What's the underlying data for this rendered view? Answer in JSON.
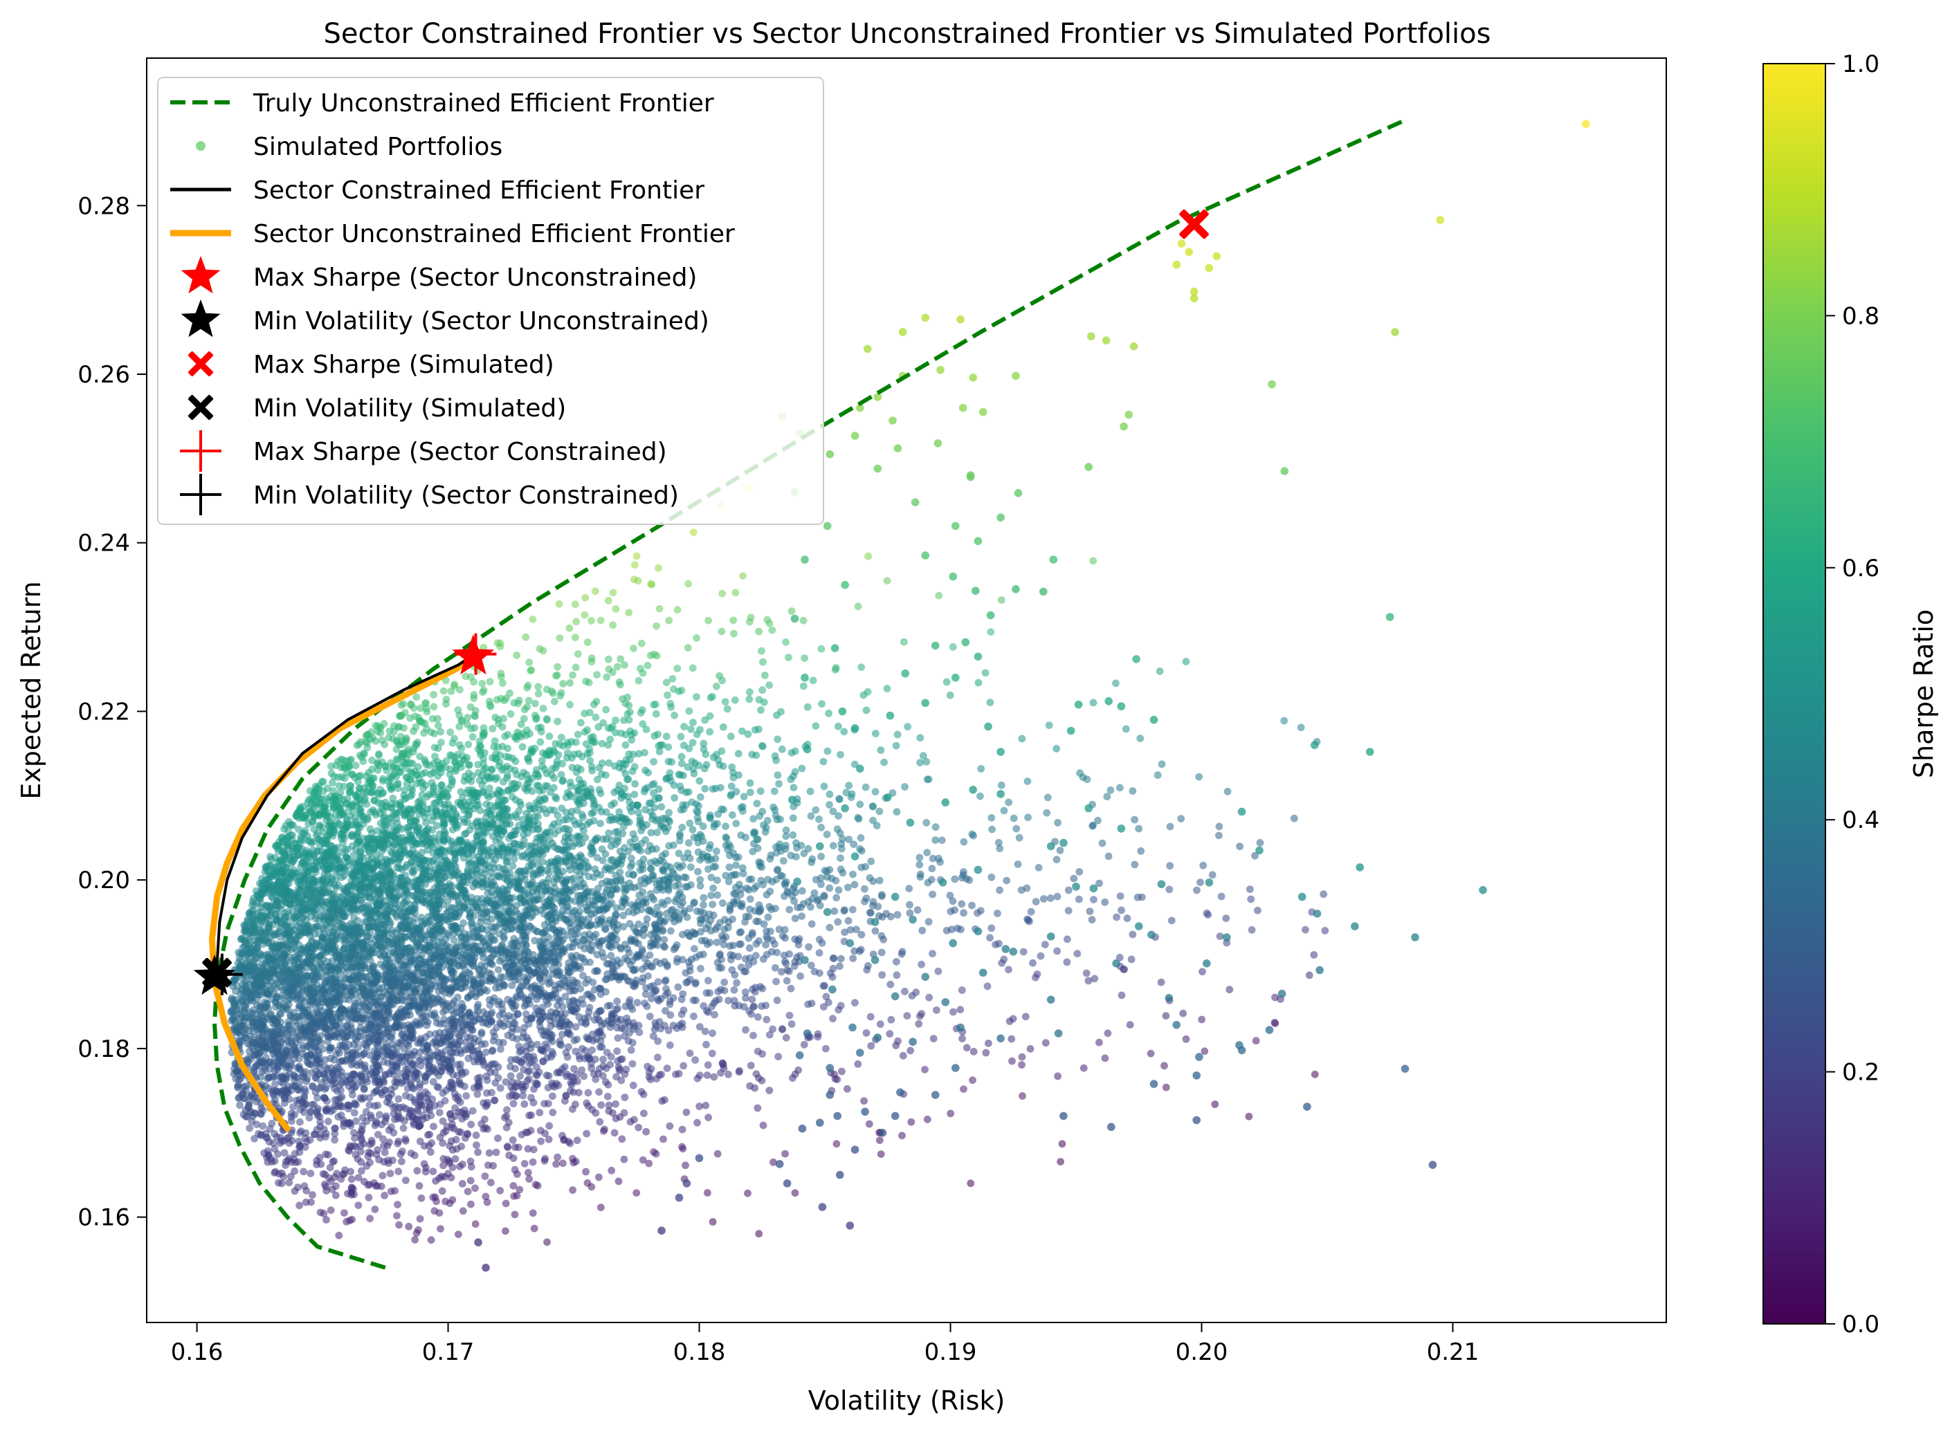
{
  "colors": {
    "true_frontier": "#008000",
    "sector_constrained": "#000000",
    "sector_unconstrained": "#ffa500",
    "max_marker": "#ff0000",
    "min_marker": "#000000"
  },
  "chart_data": {
    "type": "scatter",
    "title": "Sector Constrained Frontier vs Sector Unconstrained Frontier vs Simulated Portfolios",
    "xlabel": "Volatility (Risk)",
    "ylabel": "Expected Return",
    "xlim": [
      0.158,
      0.2185
    ],
    "ylim": [
      0.1475,
      0.2975
    ],
    "xticks": [
      0.16,
      0.17,
      0.18,
      0.19,
      0.2,
      0.21
    ],
    "xtick_labels": [
      "0.16",
      "0.17",
      "0.18",
      "0.19",
      "0.20",
      "0.21"
    ],
    "yticks": [
      0.16,
      0.18,
      0.2,
      0.22,
      0.24,
      0.26,
      0.28
    ],
    "ytick_labels": [
      "0.16",
      "0.18",
      "0.20",
      "0.22",
      "0.24",
      "0.26",
      "0.28"
    ],
    "grid": false,
    "legend_position": "top-left",
    "colorbar": {
      "label": "Sharpe Ratio",
      "range": [
        0.0,
        1.0
      ],
      "colormap": "viridis",
      "ticks": [
        0.0,
        0.2,
        0.4,
        0.6,
        0.8,
        1.0
      ],
      "tick_labels": [
        "0.0",
        "0.2",
        "0.4",
        "0.6",
        "0.8",
        "1.0"
      ]
    },
    "legend": [
      {
        "label": "Truly Unconstrained Efficient Frontier",
        "kind": "dashed-line",
        "color": "#008000"
      },
      {
        "label": "Simulated Portfolios",
        "kind": "dot",
        "color": "#5cc863"
      },
      {
        "label": "Sector Constrained Efficient Frontier",
        "kind": "line",
        "color": "#000000"
      },
      {
        "label": "Sector Unconstrained Efficient Frontier",
        "kind": "thick-line",
        "color": "#ffa500"
      },
      {
        "label": "Max Sharpe (Sector Unconstrained)",
        "kind": "star",
        "color": "#ff0000"
      },
      {
        "label": "Min Volatility (Sector Unconstrained)",
        "kind": "star",
        "color": "#000000"
      },
      {
        "label": "Max Sharpe (Simulated)",
        "kind": "x",
        "color": "#ff0000"
      },
      {
        "label": "Min Volatility (Simulated)",
        "kind": "x",
        "color": "#000000"
      },
      {
        "label": "Max Sharpe (Sector Constrained)",
        "kind": "plus",
        "color": "#ff0000"
      },
      {
        "label": "Min Volatility (Sector Constrained)",
        "kind": "plus",
        "color": "#000000"
      }
    ],
    "series": [
      {
        "name": "Truly Unconstrained Efficient Frontier",
        "style": "dashed",
        "x": [
          0.1675,
          0.1648,
          0.1636,
          0.1625,
          0.1617,
          0.1611,
          0.1608,
          0.1607,
          0.1608,
          0.1612,
          0.1619,
          0.1628,
          0.1642,
          0.1663,
          0.1694,
          0.1734,
          0.1784,
          0.1844,
          0.1912,
          0.199,
          0.208
        ],
        "y": [
          0.154,
          0.1565,
          0.16,
          0.164,
          0.1685,
          0.173,
          0.178,
          0.183,
          0.188,
          0.194,
          0.2,
          0.206,
          0.212,
          0.218,
          0.225,
          0.233,
          0.242,
          0.253,
          0.265,
          0.278,
          0.29
        ]
      },
      {
        "name": "Sector Constrained Efficient Frontier",
        "style": "solid",
        "x": [
          0.1608,
          0.1609,
          0.1612,
          0.1618,
          0.1628,
          0.1642,
          0.166,
          0.1682,
          0.1704,
          0.1712
        ],
        "y": [
          0.19,
          0.195,
          0.2,
          0.205,
          0.21,
          0.215,
          0.219,
          0.2225,
          0.2255,
          0.227
        ]
      },
      {
        "name": "Sector Unconstrained Efficient Frontier",
        "style": "thick",
        "x": [
          0.1636,
          0.1628,
          0.1618,
          0.1611,
          0.1607,
          0.1606,
          0.1608,
          0.1612,
          0.1618,
          0.1627,
          0.164,
          0.1657,
          0.168,
          0.1703,
          0.1712
        ],
        "y": [
          0.1705,
          0.1735,
          0.178,
          0.183,
          0.188,
          0.193,
          0.198,
          0.202,
          0.206,
          0.21,
          0.214,
          0.218,
          0.2215,
          0.225,
          0.227
        ]
      }
    ],
    "markers": [
      {
        "name": "Max Sharpe (Sector Unconstrained)",
        "kind": "star",
        "color": "#ff0000",
        "x": 0.171,
        "y": 0.2265
      },
      {
        "name": "Min Volatility (Sector Unconstrained)",
        "kind": "star",
        "color": "#000000",
        "x": 0.1607,
        "y": 0.1885
      },
      {
        "name": "Max Sharpe (Simulated)",
        "kind": "x",
        "color": "#ff0000",
        "x": 0.1997,
        "y": 0.2778
      },
      {
        "name": "Min Volatility (Simulated)",
        "kind": "x",
        "color": "#000000",
        "x": 0.1608,
        "y": 0.189
      },
      {
        "name": "Max Sharpe (Sector Constrained)",
        "kind": "plus",
        "color": "#ff0000",
        "x": 0.1711,
        "y": 0.2268
      },
      {
        "name": "Min Volatility (Sector Constrained)",
        "kind": "plus",
        "color": "#000000",
        "x": 0.161,
        "y": 0.1888
      }
    ],
    "simulated_portfolios": {
      "name": "Simulated Portfolios",
      "color_by": "Sharpe Ratio",
      "points": [
        [
          0.2153,
          0.2897,
          0.99
        ],
        [
          0.2095,
          0.2783,
          0.93
        ],
        [
          0.2077,
          0.265,
          0.85
        ],
        [
          0.2028,
          0.2588,
          0.8
        ],
        [
          0.2033,
          0.2485,
          0.76
        ],
        [
          0.2075,
          0.2312,
          0.66
        ],
        [
          0.2045,
          0.216,
          0.58
        ],
        [
          0.2067,
          0.2152,
          0.58
        ],
        [
          0.2112,
          0.1988,
          0.47
        ],
        [
          0.2085,
          0.1932,
          0.44
        ],
        [
          0.2063,
          0.2015,
          0.49
        ],
        [
          0.204,
          0.198,
          0.47
        ],
        [
          0.2046,
          0.196,
          0.45
        ],
        [
          0.2061,
          0.1945,
          0.44
        ],
        [
          0.2023,
          0.2035,
          0.5
        ],
        [
          0.2016,
          0.2081,
          0.53
        ],
        [
          0.2003,
          0.1997,
          0.48
        ],
        [
          0.201,
          0.1932,
          0.44
        ],
        [
          0.1984,
          0.1995,
          0.48
        ],
        [
          0.2002,
          0.1901,
          0.42
        ],
        [
          0.2032,
          0.1865,
          0.39
        ],
        [
          0.2047,
          0.1893,
          0.41
        ],
        [
          0.2027,
          0.1822,
          0.36
        ],
        [
          0.2016,
          0.1798,
          0.34
        ],
        [
          0.2015,
          0.1804,
          0.35
        ],
        [
          0.1987,
          0.186,
          0.39
        ],
        [
          0.199,
          0.1828,
          0.37
        ],
        [
          0.1999,
          0.179,
          0.34
        ],
        [
          0.1998,
          0.1768,
          0.32
        ],
        [
          0.1981,
          0.1758,
          0.31
        ],
        [
          0.1998,
          0.1715,
          0.28
        ],
        [
          0.2042,
          0.1731,
          0.29
        ],
        [
          0.2081,
          0.1776,
          0.32
        ],
        [
          0.2092,
          0.1662,
          0.24
        ],
        [
          0.1964,
          0.1707,
          0.27
        ],
        [
          0.1945,
          0.172,
          0.28
        ],
        [
          0.1981,
          0.219,
          0.59
        ],
        [
          0.1974,
          0.2262,
          0.64
        ],
        [
          0.1963,
          0.2212,
          0.6
        ],
        [
          0.1951,
          0.2208,
          0.6
        ],
        [
          0.1968,
          0.2206,
          0.6
        ],
        [
          0.1948,
          0.2177,
          0.59
        ],
        [
          0.1955,
          0.2085,
          0.54
        ],
        [
          0.1968,
          0.2061,
          0.52
        ],
        [
          0.1945,
          0.2044,
          0.51
        ],
        [
          0.1975,
          0.1945,
          0.45
        ],
        [
          0.198,
          0.1935,
          0.44
        ],
        [
          0.1966,
          0.1901,
          0.42
        ],
        [
          0.1957,
          0.199,
          0.48
        ],
        [
          0.195,
          0.1992,
          0.48
        ],
        [
          0.194,
          0.204,
          0.51
        ],
        [
          0.194,
          0.1933,
          0.44
        ],
        [
          0.1922,
          0.1918,
          0.43
        ],
        [
          0.1911,
          0.1939,
          0.44
        ],
        [
          0.194,
          0.1858,
          0.39
        ],
        [
          0.1943,
          0.1818,
          0.37
        ],
        [
          0.1995,
          0.2745,
          0.93
        ],
        [
          0.2003,
          0.2726,
          0.92
        ],
        [
          0.1997,
          0.2698,
          0.9
        ],
        [
          0.1992,
          0.2755,
          0.94
        ],
        [
          0.1997,
          0.269,
          0.89
        ],
        [
          0.2006,
          0.274,
          0.92
        ],
        [
          0.199,
          0.273,
          0.92
        ],
        [
          0.1973,
          0.2633,
          0.86
        ],
        [
          0.1962,
          0.264,
          0.86
        ],
        [
          0.1956,
          0.2645,
          0.86
        ],
        [
          0.1971,
          0.2552,
          0.81
        ],
        [
          0.1969,
          0.2538,
          0.8
        ],
        [
          0.1955,
          0.249,
          0.77
        ],
        [
          0.1941,
          0.238,
          0.7
        ],
        [
          0.1937,
          0.2342,
          0.68
        ],
        [
          0.1926,
          0.2345,
          0.68
        ],
        [
          0.192,
          0.243,
          0.73
        ],
        [
          0.1927,
          0.2459,
          0.75
        ],
        [
          0.1908,
          0.2478,
          0.76
        ],
        [
          0.1926,
          0.2598,
          0.83
        ],
        [
          0.1904,
          0.2665,
          0.88
        ],
        [
          0.189,
          0.2667,
          0.88
        ],
        [
          0.1881,
          0.265,
          0.87
        ],
        [
          0.1867,
          0.263,
          0.86
        ],
        [
          0.1896,
          0.2605,
          0.85
        ],
        [
          0.1909,
          0.2596,
          0.84
        ],
        [
          0.1881,
          0.2598,
          0.84
        ],
        [
          0.1871,
          0.2573,
          0.83
        ],
        [
          0.1905,
          0.256,
          0.82
        ],
        [
          0.1913,
          0.2555,
          0.82
        ],
        [
          0.1877,
          0.2545,
          0.81
        ],
        [
          0.1864,
          0.256,
          0.82
        ],
        [
          0.1879,
          0.2512,
          0.79
        ],
        [
          0.1895,
          0.2518,
          0.79
        ],
        [
          0.1908,
          0.248,
          0.77
        ],
        [
          0.1886,
          0.2448,
          0.75
        ],
        [
          0.1902,
          0.242,
          0.73
        ],
        [
          0.1911,
          0.2402,
          0.72
        ],
        [
          0.189,
          0.2385,
          0.71
        ],
        [
          0.1901,
          0.236,
          0.69
        ],
        [
          0.191,
          0.2343,
          0.68
        ],
        [
          0.1916,
          0.2314,
          0.67
        ],
        [
          0.1906,
          0.2282,
          0.65
        ],
        [
          0.1894,
          0.2278,
          0.65
        ],
        [
          0.1911,
          0.2265,
          0.64
        ],
        [
          0.1902,
          0.224,
          0.62
        ],
        [
          0.1882,
          0.2245,
          0.63
        ],
        [
          0.189,
          0.221,
          0.6
        ],
        [
          0.1876,
          0.2195,
          0.59
        ],
        [
          0.1862,
          0.218,
          0.58
        ],
        [
          0.1915,
          0.2182,
          0.58
        ],
        [
          0.192,
          0.2152,
          0.57
        ],
        [
          0.1909,
          0.2107,
          0.54
        ],
        [
          0.192,
          0.2102,
          0.54
        ],
        [
          0.1898,
          0.2092,
          0.53
        ],
        [
          0.1875,
          0.2098,
          0.53
        ],
        [
          0.1884,
          0.2068,
          0.52
        ],
        [
          0.1911,
          0.2012,
          0.49
        ],
        [
          0.1897,
          0.1997,
          0.48
        ],
        [
          0.1878,
          0.198,
          0.47
        ],
        [
          0.1885,
          0.1953,
          0.45
        ],
        [
          0.1901,
          0.1925,
          0.43
        ],
        [
          0.1913,
          0.189,
          0.41
        ],
        [
          0.1925,
          0.1915,
          0.43
        ],
        [
          0.187,
          0.1905,
          0.42
        ],
        [
          0.189,
          0.1885,
          0.41
        ],
        [
          0.1878,
          0.1862,
          0.39
        ],
        [
          0.1898,
          0.1855,
          0.39
        ],
        [
          0.1904,
          0.1825,
          0.37
        ],
        [
          0.192,
          0.1812,
          0.36
        ],
        [
          0.1885,
          0.1808,
          0.36
        ],
        [
          0.1864,
          0.1795,
          0.35
        ],
        [
          0.1902,
          0.1777,
          0.33
        ],
        [
          0.188,
          0.1748,
          0.31
        ],
        [
          0.1894,
          0.1745,
          0.31
        ],
        [
          0.1878,
          0.172,
          0.29
        ],
        [
          0.1873,
          0.17,
          0.28
        ],
        [
          0.1862,
          0.168,
          0.26
        ],
        [
          0.1855,
          0.172,
          0.29
        ],
        [
          0.1848,
          0.1712,
          0.29
        ],
        [
          0.1856,
          0.165,
          0.24
        ],
        [
          0.1849,
          0.1612,
          0.21
        ],
        [
          0.186,
          0.159,
          0.19
        ],
        [
          0.1835,
          0.164,
          0.23
        ],
        [
          0.1832,
          0.1663,
          0.25
        ],
        [
          0.1785,
          0.1584,
          0.17
        ],
        [
          0.1715,
          0.154,
          0.14
        ],
        [
          0.1712,
          0.157,
          0.16
        ],
        [
          0.1792,
          0.1623,
          0.21
        ],
        [
          0.1795,
          0.164,
          0.22
        ],
        [
          0.18,
          0.167,
          0.25
        ],
        [
          0.1841,
          0.1705,
          0.28
        ],
        [
          0.1852,
          0.1745,
          0.3
        ],
        [
          0.1866,
          0.1725,
          0.29
        ],
        [
          0.1852,
          0.1777,
          0.33
        ],
        [
          0.184,
          0.1792,
          0.34
        ],
        [
          0.1843,
          0.1818,
          0.36
        ],
        [
          0.1861,
          0.1825,
          0.37
        ],
        [
          0.1871,
          0.1813,
          0.36
        ],
        [
          0.1853,
          0.187,
          0.4
        ],
        [
          0.1842,
          0.1905,
          0.42
        ],
        [
          0.186,
          0.1925,
          0.43
        ],
        [
          0.187,
          0.195,
          0.45
        ],
        [
          0.1851,
          0.1962,
          0.46
        ],
        [
          0.1839,
          0.1998,
          0.48
        ],
        [
          0.1862,
          0.2028,
          0.5
        ],
        [
          0.1848,
          0.204,
          0.51
        ],
        [
          0.1858,
          0.2085,
          0.53
        ],
        [
          0.1837,
          0.2095,
          0.53
        ],
        [
          0.1864,
          0.2132,
          0.56
        ],
        [
          0.1843,
          0.2155,
          0.57
        ],
        [
          0.1857,
          0.22,
          0.6
        ],
        [
          0.1842,
          0.224,
          0.62
        ],
        [
          0.1854,
          0.2275,
          0.64
        ],
        [
          0.1838,
          0.231,
          0.66
        ],
        [
          0.1858,
          0.235,
          0.69
        ],
        [
          0.1842,
          0.238,
          0.7
        ],
        [
          0.1851,
          0.242,
          0.73
        ],
        [
          0.1838,
          0.246,
          0.75
        ],
        [
          0.1852,
          0.2505,
          0.78
        ],
        [
          0.184,
          0.253,
          0.8
        ],
        [
          0.1833,
          0.255,
          0.81
        ],
        [
          0.1862,
          0.2527,
          0.8
        ],
        [
          0.1871,
          0.2488,
          0.77
        ]
      ]
    }
  }
}
